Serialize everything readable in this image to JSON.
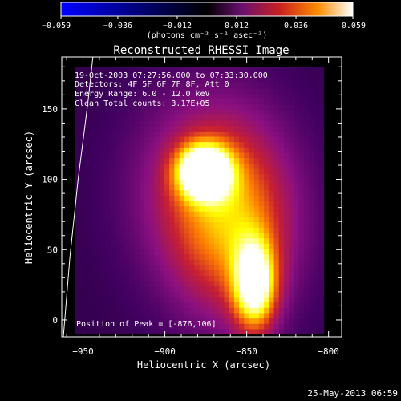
{
  "colorbar": {
    "tick_labels": [
      "-0.059",
      "-0.036",
      "-0.012",
      "0.012",
      "0.036",
      "0.059"
    ],
    "unit_label": "(photons cm⁻² s⁻¹ asec⁻²)",
    "range": [
      -0.059,
      0.059
    ]
  },
  "plot": {
    "title": "Reconstructed RHESSI Image",
    "info_lines": [
      "19-Oct-2003 07:27:56.000 to 07:33:30.000",
      "Detectors: 4F 5F 6F 7F 8F, Att 0",
      "Energy Range: 6.0 - 12.0 keV",
      "Clean    Total counts: 3.17E+05"
    ],
    "peak_text": "Position of Peak = [-876,106]",
    "timestamp": "25-May-2013 06:59"
  },
  "chart_data": {
    "type": "heatmap",
    "title": "Reconstructed RHESSI Image",
    "xlabel": "Heliocentric X (arcsec)",
    "ylabel": "Heliocentric Y (arcsec)",
    "xlim": [
      -963,
      -792
    ],
    "ylim": [
      -12,
      187
    ],
    "x_ticks": [
      -950,
      -900,
      -850,
      -800
    ],
    "x_tick_labels": [
      "−950",
      "−900",
      "−850",
      "−800"
    ],
    "y_ticks": [
      0,
      50,
      100,
      150
    ],
    "y_tick_labels": [
      "0",
      "50",
      "100",
      "150"
    ],
    "image_extent_x": [
      -955,
      -803
    ],
    "image_extent_y": [
      -10,
      180
    ],
    "sources": [
      {
        "x": -876,
        "y": 106,
        "peak": 0.059,
        "sx": 11,
        "sy": 13
      },
      {
        "x": -845,
        "y": 25,
        "peak": 0.048,
        "sx": 9,
        "sy": 22
      },
      {
        "x": -858,
        "y": 60,
        "peak": 0.022,
        "sx": 26,
        "sy": 45
      },
      {
        "x": -872,
        "y": 95,
        "peak": 0.02,
        "sx": 32,
        "sy": 48
      }
    ],
    "background_level": 0.008,
    "limb_curve": {
      "x": [
        -962,
        -958,
        -953,
        -947,
        -944
      ],
      "y": [
        -12,
        45,
        100,
        155,
        187
      ]
    },
    "colorscale": [
      "#0000ff",
      "#000000",
      "#400060",
      "#8b1080",
      "#c82030",
      "#ff8000",
      "#ffff00",
      "#ffffff"
    ]
  }
}
